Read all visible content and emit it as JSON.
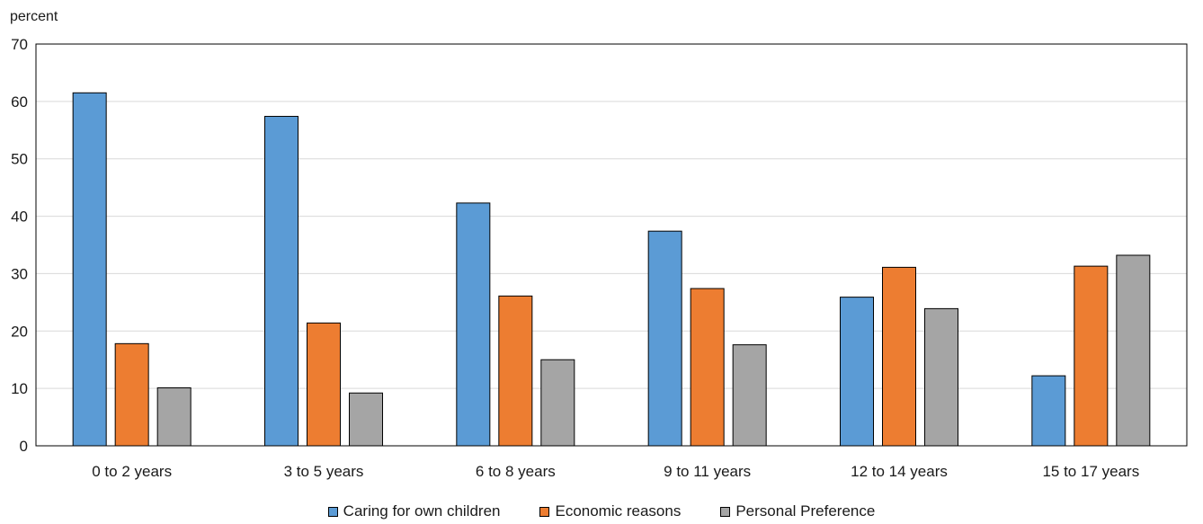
{
  "chart_data": {
    "type": "bar",
    "ylabel": "percent",
    "ylim": [
      0,
      70
    ],
    "yticks": [
      0,
      10,
      20,
      30,
      40,
      50,
      60,
      70
    ],
    "grid": true,
    "legend_position": "bottom",
    "categories": [
      "0 to 2 years",
      "3 to 5 years",
      "6 to 8 years",
      "9 to 11 years",
      "12 to 14 years",
      "15 to 17 years"
    ],
    "series": [
      {
        "name": "Caring for own children",
        "color": "#5b9bd5",
        "values": [
          61.5,
          57.4,
          42.3,
          37.4,
          25.9,
          12.2
        ]
      },
      {
        "name": "Economic reasons",
        "color": "#ed7d31",
        "values": [
          17.8,
          21.4,
          26.1,
          27.4,
          31.1,
          31.3
        ]
      },
      {
        "name": "Personal Preference",
        "color": "#a5a5a5",
        "values": [
          10.1,
          9.2,
          15.0,
          17.6,
          23.9,
          33.2
        ]
      }
    ]
  }
}
